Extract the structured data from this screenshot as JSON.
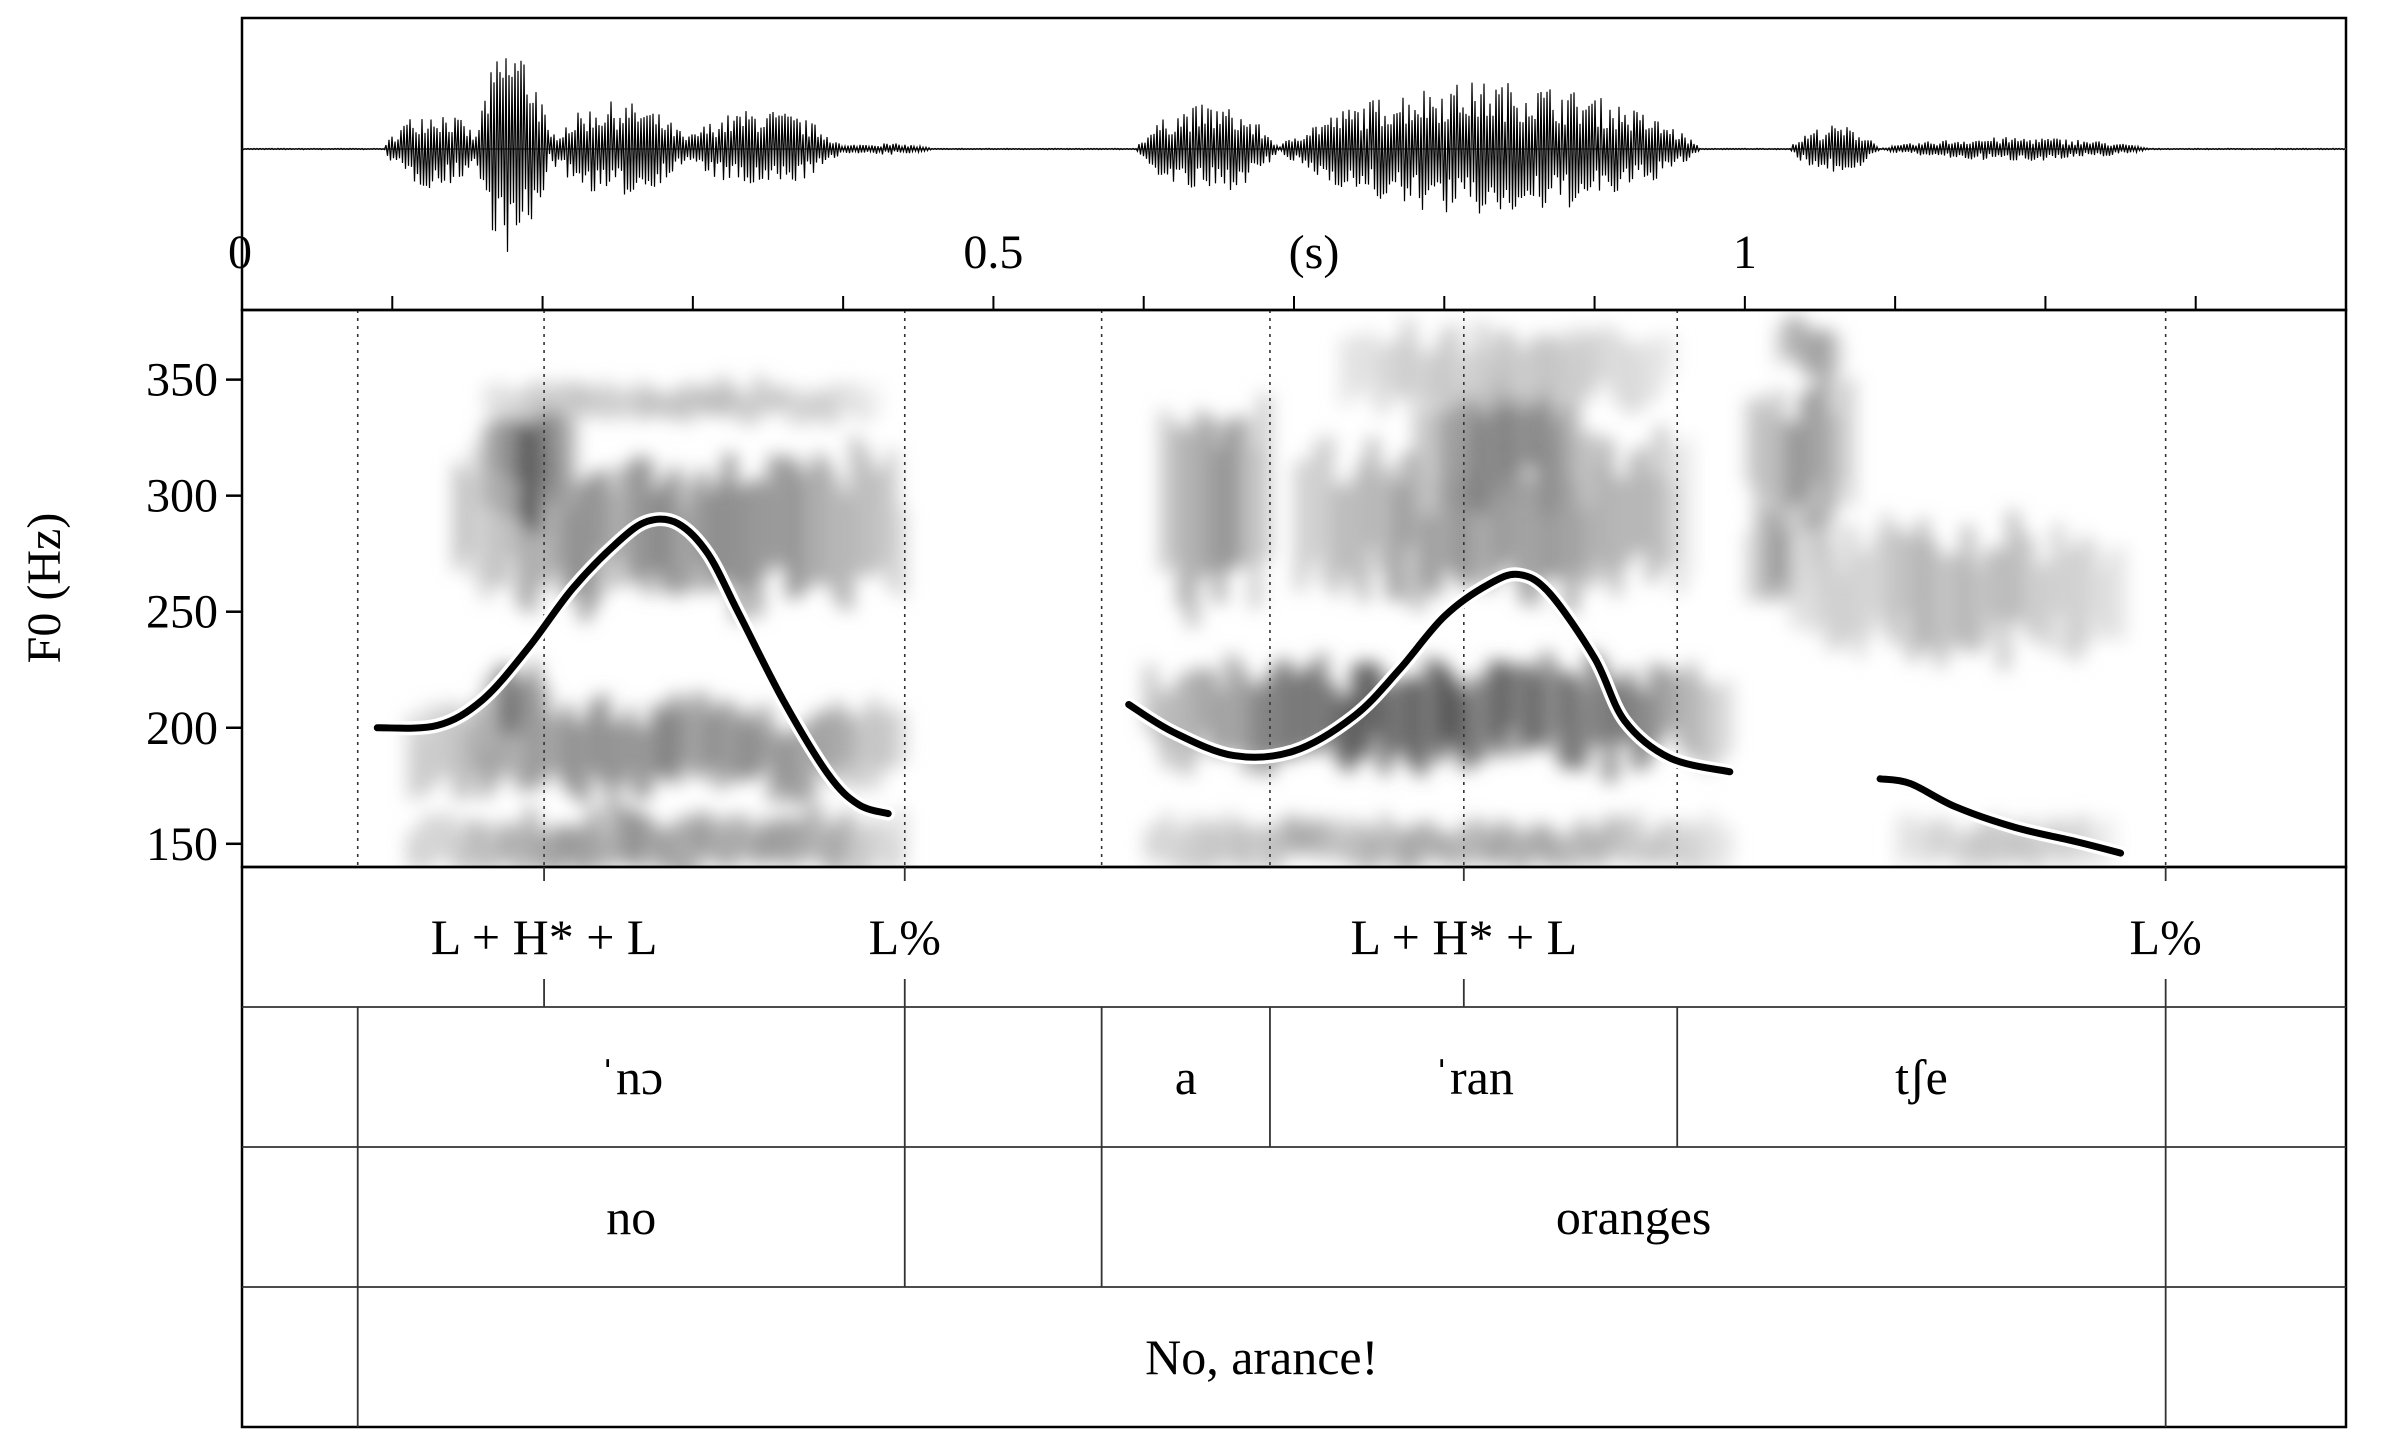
{
  "chart_data": {
    "type": "line",
    "title": "",
    "xlabel": "(s)",
    "ylabel": "F0 (Hz)",
    "xlim": [
      0,
      1.4
    ],
    "ylim": [
      140,
      380
    ],
    "time_ticks": [
      {
        "t": 0,
        "label": "0"
      },
      {
        "t": 0.5,
        "label": "0.5"
      },
      {
        "t": 1,
        "label": "1"
      }
    ],
    "minor_ticks": [
      0.1,
      0.2,
      0.3,
      0.4,
      0.6,
      0.7,
      0.8,
      0.9,
      1.1,
      1.2,
      1.3,
      1.4
    ],
    "yticks": [
      150,
      200,
      250,
      300,
      350
    ],
    "series": [
      {
        "x": [
          0.09,
          0.13,
          0.16,
          0.19,
          0.22,
          0.25,
          0.27,
          0.29,
          0.31,
          0.33,
          0.36,
          0.39,
          0.41,
          0.43
        ],
        "y": [
          200,
          201,
          212,
          234,
          260,
          280,
          289,
          288,
          275,
          250,
          212,
          180,
          167,
          163
        ]
      },
      {
        "x": [
          0.59,
          0.62,
          0.66,
          0.7,
          0.74,
          0.77,
          0.8,
          0.83,
          0.85,
          0.87,
          0.9,
          0.92,
          0.95,
          0.99
        ],
        "y": [
          210,
          198,
          188,
          190,
          205,
          225,
          248,
          262,
          266,
          258,
          230,
          203,
          187,
          181
        ]
      },
      {
        "x": [
          1.09,
          1.11,
          1.14,
          1.18,
          1.22,
          1.25
        ],
        "y": [
          178,
          176,
          166,
          157,
          151,
          146
        ]
      }
    ],
    "boundaries": [
      0.077,
      0.441,
      0.572,
      0.684,
      0.955,
      1.28
    ],
    "tone_points": [
      0.201,
      0.813
    ],
    "tiers": [
      {
        "type": "point",
        "labels": [
          {
            "t": 0.201,
            "text": "L + H* + L"
          },
          {
            "t": 0.441,
            "text": "L%"
          },
          {
            "t": 0.813,
            "text": "L + H* + L"
          },
          {
            "t": 1.28,
            "text": "L%"
          }
        ]
      },
      {
        "type": "interval",
        "bounds": [
          0.077,
          0.441,
          0.572,
          0.684,
          0.955,
          1.28
        ],
        "labels": [
          {
            "start": 0.077,
            "end": 0.441,
            "text": "ˈnɔ"
          },
          {
            "start": 0.572,
            "end": 0.684,
            "text": "a"
          },
          {
            "start": 0.684,
            "end": 0.955,
            "text": "ˈran"
          },
          {
            "start": 0.955,
            "end": 1.28,
            "text": "tʃe"
          }
        ]
      },
      {
        "type": "interval",
        "bounds": [
          0.077,
          0.441,
          0.572,
          1.28
        ],
        "labels": [
          {
            "start": 0.077,
            "end": 0.441,
            "text": "no"
          },
          {
            "start": 0.572,
            "end": 1.28,
            "text": "oranges"
          }
        ]
      },
      {
        "type": "interval",
        "bounds": [
          0.077,
          1.28
        ],
        "labels": [
          {
            "start": 0.077,
            "end": 1.28,
            "text": "No, arance!"
          }
        ]
      }
    ]
  }
}
